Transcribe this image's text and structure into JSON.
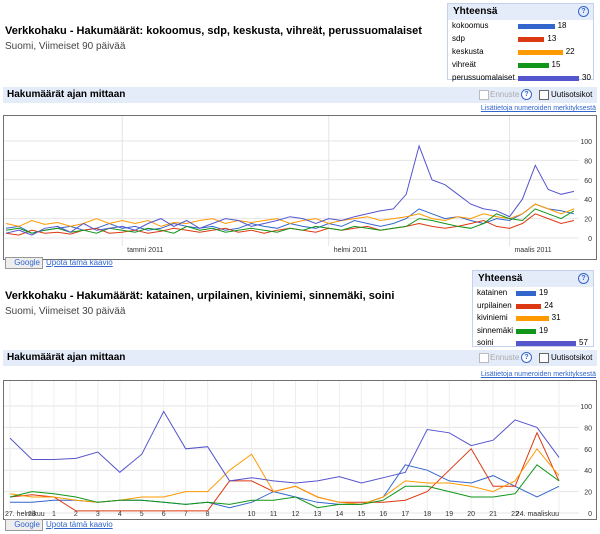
{
  "panels": [
    {
      "title": "Verkkohaku - Hakumäärät: kokoomus, sdp, keskusta, vihreät, perussuomalaiset",
      "subtitle": "Suomi, Viimeiset 90 päivää",
      "totals_heading": "Yhteensä",
      "section": "Hakumäärät ajan mittaan",
      "forecast": "Ennuste",
      "news": "Uutisotsikot",
      "info_link": "Lisätietoja numeroiden merkityksestä",
      "embed_badge": "Google",
      "embed_link": "Upota tämä kaavio",
      "chart_data": {
        "type": "line",
        "categories": [
          null,
          null,
          null,
          null,
          null,
          null,
          null,
          null,
          null,
          "tammi 2011",
          null,
          null,
          null,
          null,
          null,
          null,
          null,
          null,
          null,
          null,
          null,
          null,
          null,
          null,
          null,
          "helmi 2011",
          null,
          null,
          null,
          null,
          null,
          null,
          null,
          null,
          null,
          null,
          null,
          null,
          null,
          "maalis 2011",
          null,
          null,
          null,
          null,
          null
        ],
        "series": [
          {
            "name": "kokoomus",
            "color": "#3366cc",
            "total": 18,
            "values": [
              10,
              12,
              5,
              8,
              10,
              12,
              8,
              10,
              15,
              10,
              12,
              8,
              10,
              15,
              12,
              10,
              12,
              8,
              10,
              15,
              12,
              10,
              15,
              12,
              10,
              15,
              12,
              18,
              15,
              12,
              15,
              20,
              30,
              25,
              20,
              22,
              18,
              15,
              20,
              18,
              25,
              35,
              30,
              28,
              25
            ]
          },
          {
            "name": "sdp",
            "color": "#dc3912",
            "total": 13,
            "values": [
              5,
              3,
              8,
              5,
              6,
              4,
              8,
              10,
              5,
              6,
              8,
              5,
              7,
              10,
              8,
              6,
              8,
              10,
              6,
              8,
              5,
              8,
              10,
              8,
              6,
              10,
              8,
              10,
              12,
              8,
              10,
              12,
              15,
              12,
              10,
              12,
              15,
              18,
              12,
              10,
              15,
              25,
              20,
              15,
              18
            ]
          },
          {
            "name": "keskusta",
            "color": "#ff9900",
            "total": 22,
            "values": [
              15,
              12,
              18,
              14,
              16,
              12,
              15,
              20,
              15,
              18,
              15,
              18,
              12,
              16,
              15,
              18,
              20,
              15,
              18,
              16,
              18,
              20,
              15,
              18,
              20,
              15,
              18,
              20,
              22,
              18,
              20,
              22,
              25,
              20,
              18,
              22,
              20,
              25,
              22,
              20,
              25,
              35,
              30,
              25,
              30
            ]
          },
          {
            "name": "vihreät",
            "color": "#109618",
            "total": 15,
            "values": [
              8,
              10,
              5,
              8,
              10,
              6,
              8,
              5,
              10,
              8,
              6,
              10,
              8,
              5,
              12,
              8,
              10,
              6,
              8,
              10,
              8,
              6,
              10,
              8,
              12,
              10,
              8,
              12,
              10,
              8,
              10,
              12,
              20,
              18,
              15,
              12,
              10,
              15,
              25,
              20,
              18,
              30,
              25,
              20,
              28
            ]
          },
          {
            "name": "perussuomalaiset",
            "color": "#5555cc",
            "total": 30,
            "values": [
              5,
              8,
              3,
              10,
              12,
              6,
              15,
              8,
              10,
              12,
              8,
              15,
              20,
              12,
              18,
              10,
              15,
              20,
              18,
              12,
              15,
              18,
              22,
              20,
              15,
              20,
              18,
              22,
              25,
              28,
              30,
              45,
              95,
              60,
              55,
              45,
              35,
              30,
              28,
              22,
              40,
              75,
              50,
              45,
              48
            ]
          }
        ],
        "ylim": [
          0,
          100
        ],
        "yticks": [
          0,
          20,
          40,
          60,
          80,
          100
        ],
        "grid": true
      }
    },
    {
      "title": "Verkkohaku - Hakumäärät: katainen, urpilainen, kiviniemi, sinnemäki, soini",
      "subtitle": "Suomi, Viimeiset 30 päivää",
      "totals_heading": "Yhteensä",
      "section": "Hakumäärät ajan mittaan",
      "forecast": "Ennuste",
      "news": "Uutisotsikot",
      "info_link": "Lisätietoja numeroiden merkityksestä",
      "embed_badge": "Google",
      "embed_link": "Upota tämä kaavio",
      "chart_data": {
        "type": "line",
        "categories": [
          "27. helmikuu",
          "28",
          "1",
          "2",
          "3",
          "4",
          "5",
          "6",
          "7",
          "8",
          null,
          "10",
          "11",
          "12",
          "13",
          "14",
          "15",
          "16",
          "17",
          "18",
          "19",
          "20",
          "21",
          "22",
          null,
          "24. maaliskuu"
        ],
        "series": [
          {
            "name": "katainen",
            "color": "#3366cc",
            "total": 19,
            "values": [
              10,
              10,
              12,
              12,
              10,
              12,
              12,
              10,
              8,
              10,
              5,
              10,
              20,
              15,
              10,
              8,
              8,
              15,
              45,
              40,
              30,
              28,
              35,
              25,
              15,
              25
            ]
          },
          {
            "name": "urpilainen",
            "color": "#dc3912",
            "total": 24,
            "values": [
              15,
              17,
              15,
              2,
              2,
              2,
              2,
              2,
              2,
              2,
              30,
              30,
              20,
              25,
              15,
              10,
              10,
              10,
              12,
              20,
              40,
              60,
              25,
              25,
              75,
              30
            ]
          },
          {
            "name": "kiviniemi",
            "color": "#ff9900",
            "total": 31,
            "values": [
              18,
              15,
              15,
              12,
              10,
              12,
              15,
              15,
              20,
              20,
              40,
              55,
              20,
              25,
              15,
              10,
              8,
              15,
              30,
              28,
              28,
              25,
              20,
              30,
              60,
              35
            ]
          },
          {
            "name": "sinnemäki",
            "color": "#109618",
            "total": 19,
            "values": [
              15,
              20,
              18,
              15,
              10,
              12,
              12,
              10,
              8,
              10,
              8,
              12,
              12,
              15,
              5,
              8,
              8,
              12,
              25,
              25,
              20,
              15,
              15,
              18,
              45,
              30
            ]
          },
          {
            "name": "soini",
            "color": "#5555cc",
            "total": 57,
            "values": [
              70,
              50,
              50,
              51,
              57,
              38,
              55,
              95,
              60,
              62,
              30,
              33,
              30,
              28,
              30,
              34,
              28,
              33,
              38,
              78,
              75,
              63,
              68,
              87,
              80,
              52
            ]
          }
        ],
        "ylim": [
          0,
          100
        ],
        "yticks": [
          0,
          20,
          40,
          60,
          80,
          100
        ],
        "grid": true
      }
    }
  ]
}
